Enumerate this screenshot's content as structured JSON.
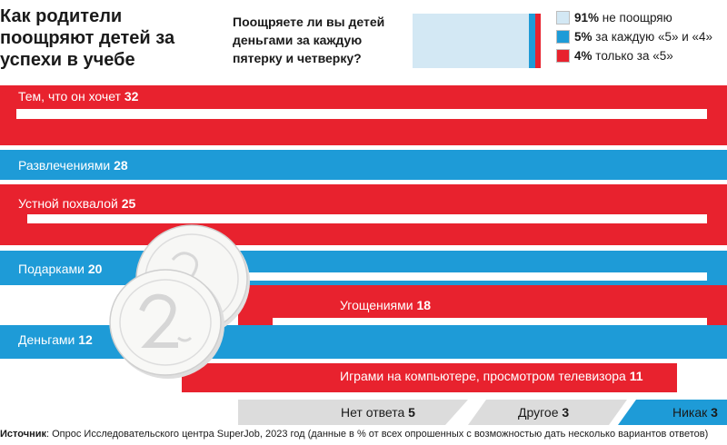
{
  "title": "Как родители поощряют детей за успехи в учебе",
  "question": "Поощряете ли вы детей деньгами за каждую пятерку и четверку?",
  "colors": {
    "red": "#e8222e",
    "blue": "#1e9bd7",
    "lightblue": "#d3e8f4",
    "gray": "#dcdcdc",
    "white": "#ffffff"
  },
  "legend": [
    {
      "value": "91%",
      "label": "не поощряю",
      "color": "#d3e8f4"
    },
    {
      "value": "5%",
      "label": "за каждую «5» и «4»",
      "color": "#1e9bd7"
    },
    {
      "value": "4%",
      "label": "только за «5»",
      "color": "#e8222e"
    }
  ],
  "chart_data": [
    {
      "type": "bar",
      "title": "Поощряете ли вы детей деньгами за каждую пятерку и четверку?",
      "categories": [
        "не поощряю",
        "за каждую «5» и «4»",
        "только за «5»"
      ],
      "values": [
        91,
        5,
        4
      ]
    },
    {
      "type": "bar",
      "title": "Как родители поощряют детей за успехи в учебе",
      "categories": [
        "Тем, что он хочет",
        "Развлечениями",
        "Устной похвалой",
        "Подарками",
        "Угощениями",
        "Деньгами",
        "Играми на компьютере, просмотром телевизора",
        "Нет ответа",
        "Другое",
        "Никак"
      ],
      "values": [
        32,
        28,
        25,
        20,
        18,
        12,
        11,
        5,
        3,
        3
      ]
    }
  ],
  "source": {
    "label": "Источник",
    "text": ": Опрос Исследовательского центра SuperJob, 2023 год (данные в % от всех опрошенных с возможностью дать несколько вариантов ответов)"
  }
}
